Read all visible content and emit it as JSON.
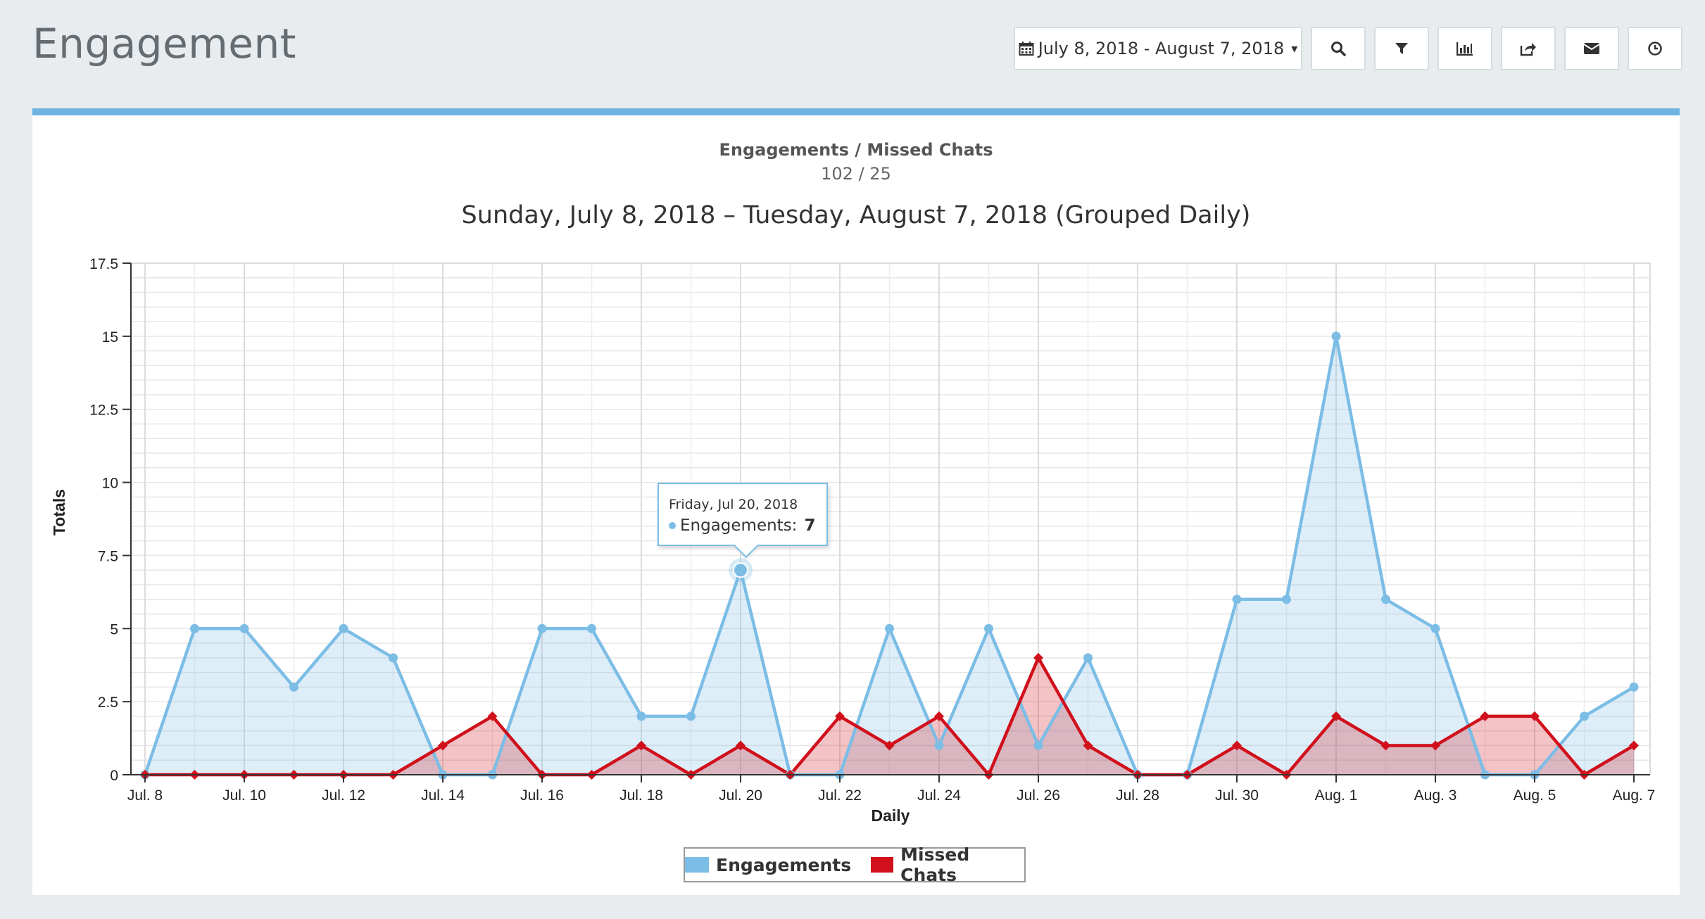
{
  "page": {
    "title": "Engagement"
  },
  "toolbar": {
    "date_range_label": "July 8, 2018 - August 7, 2018",
    "icons": [
      "calendar-icon",
      "search-icon",
      "filter-icon",
      "bar-chart-icon",
      "share-icon",
      "envelope-icon",
      "clock-icon"
    ]
  },
  "summary": {
    "label": "Engagements / Missed Chats",
    "value": "102 / 25"
  },
  "colors": {
    "engagements": "#7cbde6",
    "missed_chats": "#d0101b",
    "accent": "#6db4e2"
  },
  "tooltip": {
    "date": "Friday, Jul 20, 2018",
    "series": "Engagements:",
    "value": "7"
  },
  "chart_data": {
    "type": "line",
    "title": "Sunday, July 8, 2018 – Tuesday, August 7, 2018 (Grouped Daily)",
    "xlabel": "Daily",
    "ylabel": "Totals",
    "ylim": [
      0,
      17.5
    ],
    "yticks": [
      0,
      2.5,
      5,
      7.5,
      10,
      12.5,
      15,
      17.5
    ],
    "ytick_labels": [
      "0",
      "2.5",
      "5",
      "7.5",
      "10",
      "12.5",
      "15",
      "17.5"
    ],
    "x": [
      "Jul. 8",
      "Jul. 9",
      "Jul. 10",
      "Jul. 11",
      "Jul. 12",
      "Jul. 13",
      "Jul. 14",
      "Jul. 15",
      "Jul. 16",
      "Jul. 17",
      "Jul. 18",
      "Jul. 19",
      "Jul. 20",
      "Jul. 21",
      "Jul. 22",
      "Jul. 23",
      "Jul. 24",
      "Jul. 25",
      "Jul. 26",
      "Jul. 27",
      "Jul. 28",
      "Jul. 29",
      "Jul. 30",
      "Jul. 31",
      "Aug. 1",
      "Aug. 2",
      "Aug. 3",
      "Aug. 4",
      "Aug. 5",
      "Aug. 6",
      "Aug. 7"
    ],
    "xtick_labels": [
      "Jul. 8",
      "Jul. 10",
      "Jul. 12",
      "Jul. 14",
      "Jul. 16",
      "Jul. 18",
      "Jul. 20",
      "Jul. 22",
      "Jul. 24",
      "Jul. 26",
      "Jul. 28",
      "Jul. 30",
      "Aug. 1",
      "Aug. 3",
      "Aug. 5",
      "Aug. 7"
    ],
    "series": [
      {
        "name": "Engagements",
        "values": [
          0,
          5,
          5,
          3,
          5,
          4,
          0,
          0,
          5,
          5,
          2,
          2,
          7,
          0,
          0,
          5,
          1,
          5,
          1,
          4,
          0,
          0,
          6,
          6,
          15,
          6,
          5,
          0,
          0,
          2,
          3
        ]
      },
      {
        "name": "Missed Chats",
        "values": [
          0,
          0,
          0,
          0,
          0,
          0,
          1,
          2,
          0,
          0,
          1,
          0,
          1,
          0,
          2,
          1,
          2,
          0,
          4,
          1,
          0,
          0,
          1,
          0,
          2,
          1,
          1,
          2,
          2,
          0,
          1
        ]
      }
    ],
    "grid": true,
    "legend": "bottom-center",
    "highlighted_point": {
      "series": "Engagements",
      "x": "Jul. 20",
      "value": 7
    }
  }
}
